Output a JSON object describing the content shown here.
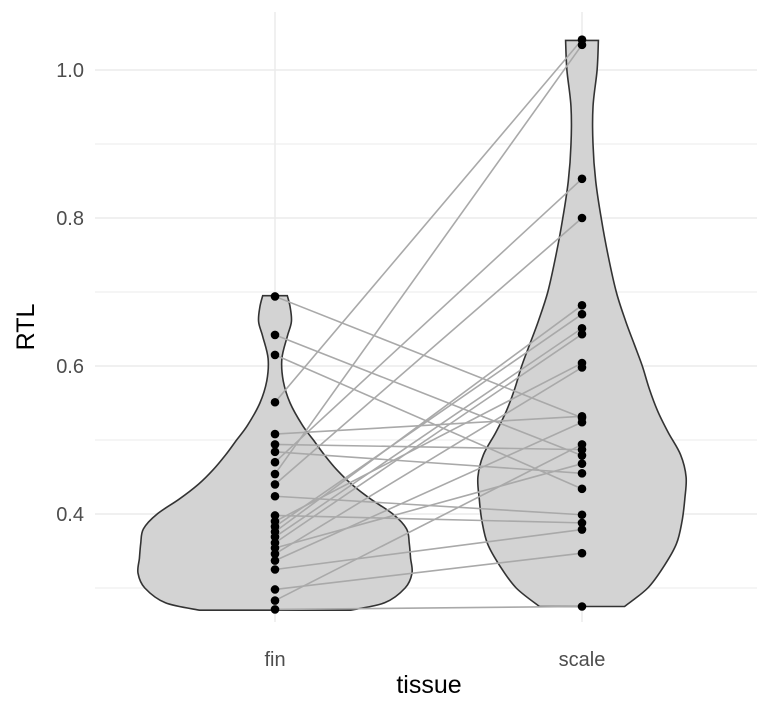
{
  "chart_data": {
    "type": "violin",
    "xlabel": "tissue",
    "ylabel": "RTL",
    "categories": [
      "fin",
      "scale"
    ],
    "ylim": [
      0.25,
      1.06
    ],
    "yticks": [
      0.4,
      0.6,
      0.8,
      1.0
    ],
    "ytick_labels": [
      "0.4",
      "0.6",
      "0.8",
      "1.0"
    ],
    "grid": true,
    "legend": "none",
    "colors": {
      "violin_fill": "#d3d3d3",
      "violin_outline": "#333333",
      "point": "#000000",
      "line": "#a9a9a9",
      "grid": "#ebebeb"
    },
    "violins": [
      {
        "category": "fin",
        "profile": [
          [
            0.27,
            0.55
          ],
          [
            0.28,
            0.8
          ],
          [
            0.3,
            0.95
          ],
          [
            0.32,
            1.0
          ],
          [
            0.34,
            0.99
          ],
          [
            0.36,
            0.98
          ],
          [
            0.38,
            0.96
          ],
          [
            0.4,
            0.86
          ],
          [
            0.42,
            0.7
          ],
          [
            0.44,
            0.56
          ],
          [
            0.46,
            0.45
          ],
          [
            0.48,
            0.36
          ],
          [
            0.5,
            0.28
          ],
          [
            0.52,
            0.2
          ],
          [
            0.55,
            0.11
          ],
          [
            0.58,
            0.06
          ],
          [
            0.61,
            0.05
          ],
          [
            0.64,
            0.09
          ],
          [
            0.66,
            0.12
          ],
          [
            0.68,
            0.11
          ],
          [
            0.695,
            0.09
          ]
        ]
      },
      {
        "category": "scale",
        "profile": [
          [
            0.275,
            0.31
          ],
          [
            0.3,
            0.48
          ],
          [
            0.33,
            0.6
          ],
          [
            0.36,
            0.69
          ],
          [
            0.39,
            0.73
          ],
          [
            0.42,
            0.75
          ],
          [
            0.45,
            0.76
          ],
          [
            0.48,
            0.72
          ],
          [
            0.51,
            0.63
          ],
          [
            0.54,
            0.55
          ],
          [
            0.57,
            0.49
          ],
          [
            0.6,
            0.44
          ],
          [
            0.63,
            0.38
          ],
          [
            0.66,
            0.32
          ],
          [
            0.7,
            0.25
          ],
          [
            0.75,
            0.19
          ],
          [
            0.8,
            0.14
          ],
          [
            0.85,
            0.1
          ],
          [
            0.9,
            0.08
          ],
          [
            0.95,
            0.08
          ],
          [
            1.0,
            0.11
          ],
          [
            1.04,
            0.12
          ]
        ]
      }
    ],
    "pairs": [
      {
        "fin": 0.694,
        "scale": 0.53
      },
      {
        "fin": 0.642,
        "scale": 0.479
      },
      {
        "fin": 0.615,
        "scale": 0.434
      },
      {
        "fin": 0.551,
        "scale": 1.041
      },
      {
        "fin": 0.508,
        "scale": 0.532
      },
      {
        "fin": 0.494,
        "scale": 0.487
      },
      {
        "fin": 0.484,
        "scale": 0.455
      },
      {
        "fin": 0.47,
        "scale": 0.853
      },
      {
        "fin": 0.454,
        "scale": 1.034
      },
      {
        "fin": 0.44,
        "scale": 0.8
      },
      {
        "fin": 0.424,
        "scale": 0.399
      },
      {
        "fin": 0.398,
        "scale": 0.388
      },
      {
        "fin": 0.39,
        "scale": 0.604
      },
      {
        "fin": 0.383,
        "scale": 0.67
      },
      {
        "fin": 0.376,
        "scale": 0.682
      },
      {
        "fin": 0.369,
        "scale": 0.651
      },
      {
        "fin": 0.361,
        "scale": 0.643
      },
      {
        "fin": 0.354,
        "scale": 0.468
      },
      {
        "fin": 0.346,
        "scale": 0.598
      },
      {
        "fin": 0.337,
        "scale": 0.524
      },
      {
        "fin": 0.325,
        "scale": 0.379
      },
      {
        "fin": 0.298,
        "scale": 0.347
      },
      {
        "fin": 0.283,
        "scale": 0.494
      },
      {
        "fin": 0.271,
        "scale": 0.275
      }
    ]
  }
}
